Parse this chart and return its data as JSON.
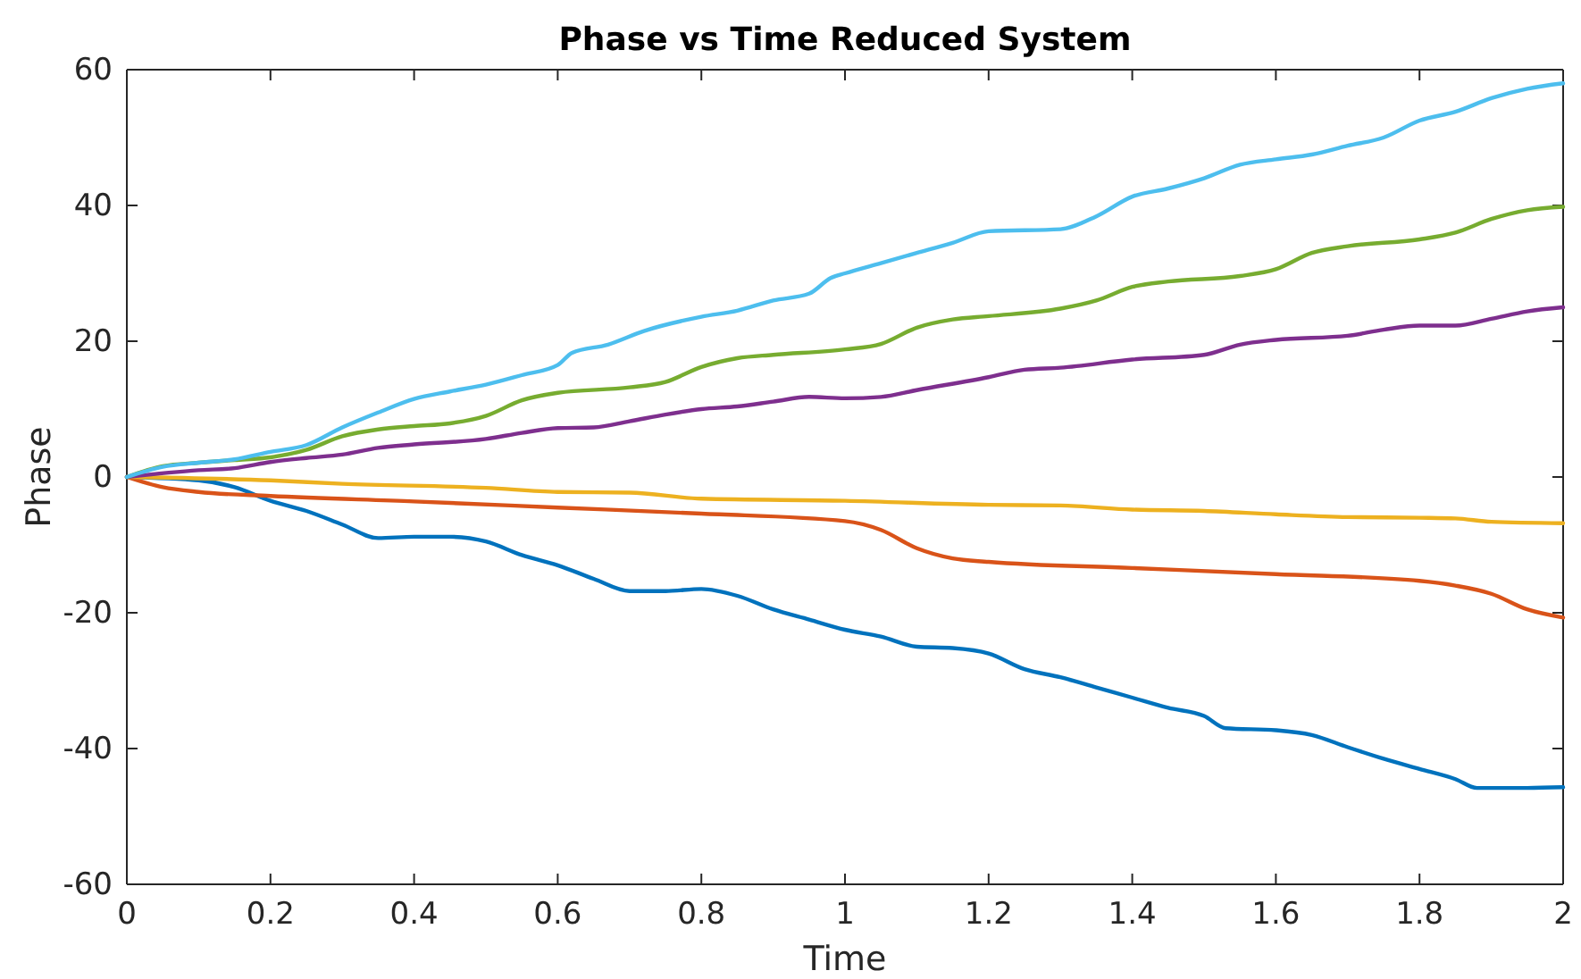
{
  "chart_data": {
    "type": "line",
    "title": "Phase vs Time Reduced System",
    "xlabel": "Time",
    "ylabel": "Phase",
    "xlim": [
      0,
      2
    ],
    "ylim": [
      -60,
      60
    ],
    "xticks": [
      0,
      0.2,
      0.4,
      0.6,
      0.8,
      1,
      1.2,
      1.4,
      1.6,
      1.8,
      2
    ],
    "yticks": [
      -60,
      -40,
      -20,
      0,
      20,
      40,
      60
    ],
    "grid": false,
    "line_style": "solid",
    "marker": "none",
    "series": [
      {
        "color": "#0072bd",
        "x": [
          0,
          0.1,
          0.15,
          0.2,
          0.25,
          0.3,
          0.35,
          0.4,
          0.45,
          0.5,
          0.55,
          0.6,
          0.65,
          0.7,
          0.75,
          0.8,
          0.85,
          0.9,
          0.95,
          1.0,
          1.05,
          1.1,
          1.15,
          1.2,
          1.25,
          1.3,
          1.35,
          1.4,
          1.45,
          1.5,
          1.53,
          1.6,
          1.65,
          1.7,
          1.75,
          1.8,
          1.85,
          1.88,
          1.95,
          2.0
        ],
        "values": [
          0,
          -0.5,
          -1.5,
          -3.5,
          -5,
          -7,
          -9,
          -8.8,
          -8.8,
          -9.5,
          -11.5,
          -13,
          -15,
          -16.8,
          -16.8,
          -16.5,
          -17.5,
          -19.5,
          -21,
          -22.5,
          -23.5,
          -25,
          -25.2,
          -26,
          -28.3,
          -29.5,
          -31,
          -32.5,
          -34,
          -35.2,
          -37,
          -37.3,
          -38,
          -39.8,
          -41.5,
          -43,
          -44.5,
          -45.8,
          -45.8,
          -45.7
        ]
      },
      {
        "color": "#d95319",
        "x": [
          0,
          0.05,
          0.1,
          0.2,
          0.4,
          0.6,
          0.8,
          1.0,
          1.05,
          1.1,
          1.15,
          1.2,
          1.4,
          1.6,
          1.8,
          1.85,
          1.9,
          1.95,
          2.0
        ],
        "values": [
          0,
          -1.5,
          -2.2,
          -2.8,
          -3.6,
          -4.5,
          -5.4,
          -6.5,
          -7.8,
          -10.5,
          -12,
          -12.5,
          -13.4,
          -14.3,
          -15.3,
          -16,
          -17.2,
          -19.5,
          -20.7
        ]
      },
      {
        "color": "#edb120",
        "x": [
          0,
          0.2,
          0.3,
          0.5,
          0.6,
          0.7,
          0.8,
          1.0,
          1.2,
          1.3,
          1.4,
          1.5,
          1.6,
          1.7,
          1.8,
          1.85,
          1.9,
          2.0
        ],
        "values": [
          0,
          -0.5,
          -1,
          -1.6,
          -2.2,
          -2.3,
          -3.2,
          -3.5,
          -4.1,
          -4.2,
          -4.8,
          -5,
          -5.5,
          -5.9,
          -6,
          -6.1,
          -6.6,
          -6.8
        ]
      },
      {
        "color": "#7e2f8e",
        "x": [
          0,
          0.1,
          0.15,
          0.2,
          0.25,
          0.3,
          0.35,
          0.4,
          0.5,
          0.55,
          0.6,
          0.65,
          0.7,
          0.75,
          0.8,
          0.85,
          0.9,
          0.95,
          1.0,
          1.05,
          1.1,
          1.2,
          1.25,
          1.3,
          1.4,
          1.5,
          1.55,
          1.6,
          1.7,
          1.75,
          1.8,
          1.85,
          1.9,
          1.95,
          2.0
        ],
        "values": [
          0,
          1,
          1.3,
          2.2,
          2.8,
          3.3,
          4.3,
          4.8,
          5.6,
          6.5,
          7.2,
          7.3,
          8.2,
          9.2,
          10,
          10.4,
          11.1,
          11.8,
          11.6,
          11.8,
          12.8,
          14.7,
          15.8,
          16.1,
          17.3,
          18,
          19.5,
          20.2,
          20.8,
          21.7,
          22.3,
          22.3,
          23.3,
          24.4,
          25
        ]
      },
      {
        "color": "#77ac30",
        "x": [
          0,
          0.05,
          0.1,
          0.15,
          0.2,
          0.25,
          0.3,
          0.35,
          0.4,
          0.45,
          0.5,
          0.55,
          0.6,
          0.7,
          0.75,
          0.8,
          0.85,
          0.9,
          1.0,
          1.05,
          1.1,
          1.15,
          1.2,
          1.3,
          1.35,
          1.4,
          1.45,
          1.55,
          1.6,
          1.65,
          1.7,
          1.8,
          1.85,
          1.9,
          1.95,
          2.0
        ],
        "values": [
          0,
          1.6,
          2.1,
          2.5,
          2.9,
          4,
          6,
          7,
          7.5,
          7.9,
          9,
          11.3,
          12.4,
          13.2,
          14,
          16.2,
          17.5,
          18,
          18.8,
          19.6,
          22,
          23.2,
          23.7,
          24.8,
          26,
          28,
          28.8,
          29.6,
          30.6,
          33,
          34,
          35,
          36,
          38,
          39.3,
          39.8
        ]
      },
      {
        "color": "#4dbeee",
        "x": [
          0,
          0.05,
          0.1,
          0.15,
          0.2,
          0.25,
          0.3,
          0.35,
          0.4,
          0.45,
          0.5,
          0.55,
          0.6,
          0.62,
          0.67,
          0.72,
          0.8,
          0.85,
          0.9,
          0.95,
          0.98,
          1.0,
          1.05,
          1.1,
          1.15,
          1.2,
          1.3,
          1.35,
          1.4,
          1.45,
          1.5,
          1.55,
          1.6,
          1.65,
          1.7,
          1.75,
          1.8,
          1.85,
          1.9,
          1.95,
          2.0
        ],
        "values": [
          0,
          1.5,
          2.1,
          2.6,
          3.7,
          4.7,
          7.3,
          9.5,
          11.5,
          12.6,
          13.6,
          15,
          16.5,
          18.3,
          19.5,
          21.5,
          23.6,
          24.5,
          26,
          27,
          29.3,
          30,
          31.5,
          33,
          34.5,
          36.2,
          36.5,
          38.4,
          41.3,
          42.5,
          44,
          46,
          46.8,
          47.5,
          48.8,
          50,
          52.5,
          53.8,
          55.8,
          57.2,
          58
        ]
      }
    ]
  }
}
